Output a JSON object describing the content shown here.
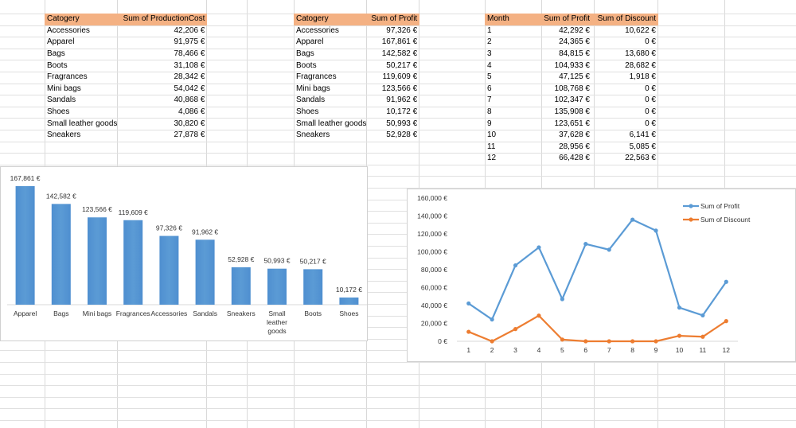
{
  "table_cost": {
    "header": [
      "Catogery",
      "Sum of ProductionCost"
    ],
    "rows": [
      [
        "Accessories",
        "42,206 €"
      ],
      [
        "Apparel",
        "91,975 €"
      ],
      [
        "Bags",
        "78,466 €"
      ],
      [
        "Boots",
        "31,108 €"
      ],
      [
        "Fragrances",
        "28,342 €"
      ],
      [
        "Mini bags",
        "54,042 €"
      ],
      [
        "Sandals",
        "40,868 €"
      ],
      [
        "Shoes",
        "4,086 €"
      ],
      [
        "Small leather goods",
        "30,820 €"
      ],
      [
        "Sneakers",
        "27,878 €"
      ]
    ]
  },
  "table_profit": {
    "header": [
      "Catogery",
      "Sum of Profit"
    ],
    "rows": [
      [
        "Accessories",
        "97,326 €"
      ],
      [
        "Apparel",
        "167,861 €"
      ],
      [
        "Bags",
        "142,582 €"
      ],
      [
        "Boots",
        "50,217 €"
      ],
      [
        "Fragrances",
        "119,609 €"
      ],
      [
        "Mini bags",
        "123,566 €"
      ],
      [
        "Sandals",
        "91,962 €"
      ],
      [
        "Shoes",
        "10,172 €"
      ],
      [
        "Small leather goods",
        "50,993 €"
      ],
      [
        "Sneakers",
        "52,928 €"
      ]
    ]
  },
  "table_month": {
    "header": [
      "Month",
      "Sum of Profit",
      "Sum of Discount"
    ],
    "rows": [
      [
        "1",
        "42,292 €",
        "10,622 €"
      ],
      [
        "2",
        "24,365 €",
        "0 €"
      ],
      [
        "3",
        "84,815 €",
        "13,680 €"
      ],
      [
        "4",
        "104,933 €",
        "28,682 €"
      ],
      [
        "5",
        "47,125 €",
        "1,918 €"
      ],
      [
        "6",
        "108,768 €",
        "0 €"
      ],
      [
        "7",
        "102,347 €",
        "0 €"
      ],
      [
        "8",
        "135,908 €",
        "0 €"
      ],
      [
        "9",
        "123,651 €",
        "0 €"
      ],
      [
        "10",
        "37,628 €",
        "6,141 €"
      ],
      [
        "11",
        "28,956 €",
        "5,085 €"
      ],
      [
        "12",
        "66,428 €",
        "22,563 €"
      ]
    ]
  },
  "chart_data": [
    {
      "type": "bar",
      "categories": [
        "Apparel",
        "Bags",
        "Mini bags",
        "Fragrances",
        "Accessories",
        "Sandals",
        "Sneakers",
        "Small leather goods",
        "Boots",
        "Shoes"
      ],
      "values": [
        167861,
        142582,
        123566,
        119609,
        97326,
        91962,
        52928,
        50993,
        50217,
        10172
      ],
      "data_labels": [
        "167,861 €",
        "142,582 €",
        "123,566 €",
        "119,609 €",
        "97,326 €",
        "91,962 €",
        "52,928 €",
        "50,993 €",
        "50,217 €",
        "10,172 €"
      ],
      "color": "#5b9bd5",
      "ylim": [
        0,
        170000
      ],
      "grid": false,
      "legend": "none"
    },
    {
      "type": "line",
      "x": [
        1,
        2,
        3,
        4,
        5,
        6,
        7,
        8,
        9,
        10,
        11,
        12
      ],
      "series": [
        {
          "name": "Sum of Profit",
          "color": "#5b9bd5",
          "values": [
            42292,
            24365,
            84815,
            104933,
            47125,
            108768,
            102347,
            135908,
            123651,
            37628,
            28956,
            66428
          ]
        },
        {
          "name": "Sum of Discount",
          "color": "#ed7d31",
          "values": [
            10622,
            0,
            13680,
            28682,
            1918,
            0,
            0,
            0,
            0,
            6141,
            5085,
            22563
          ]
        }
      ],
      "ylim": [
        0,
        160000
      ],
      "yticks": [
        "0 €",
        "20,000 €",
        "40,000 €",
        "60,000 €",
        "80,000 €",
        "100,000 €",
        "120,000 €",
        "140,000 €",
        "160,000 €"
      ],
      "xticks": [
        "1",
        "2",
        "3",
        "4",
        "5",
        "6",
        "7",
        "8",
        "9",
        "10",
        "11",
        "12"
      ],
      "grid": false,
      "legend": "top-right"
    }
  ]
}
